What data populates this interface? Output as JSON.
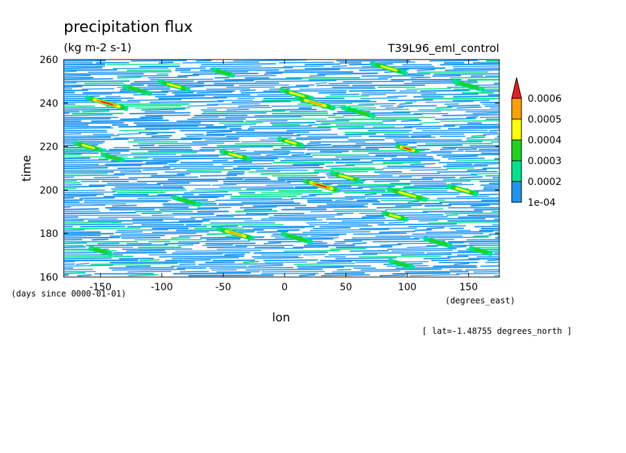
{
  "chart_data": {
    "type": "heatmap",
    "title": "precipitation flux",
    "units": "(kg m-2 s-1)",
    "experiment": "T39L96_eml_control",
    "xlabel": "lon",
    "ylabel": "time",
    "x_units": "(degrees_east)",
    "y_units": "(days since 0000-01-01)",
    "note": "[ lat=-1.48755 degrees_north ]",
    "xlim": [
      -180,
      175
    ],
    "ylim": [
      160,
      260
    ],
    "x_ticks": [
      -150,
      -100,
      -50,
      0,
      50,
      100,
      150
    ],
    "x_tick_labels": [
      "-150",
      "-100",
      "-50",
      "0",
      "50",
      "100",
      "150"
    ],
    "y_ticks": [
      160,
      180,
      200,
      220,
      240,
      260
    ],
    "y_tick_labels": [
      "160",
      "180",
      "200",
      "220",
      "240",
      "260"
    ],
    "colorbar": {
      "levels": [
        "1e-04",
        "0.0002",
        "0.0003",
        "0.0004",
        "0.0005",
        "0.0006"
      ],
      "colors": [
        "#1e96f0",
        "#00e28c",
        "#1ed21e",
        "#ffff00",
        "#ffa000",
        "#e61e1e"
      ]
    },
    "features": [
      {
        "lon": -145,
        "t": 240,
        "level": 5,
        "len": 28
      },
      {
        "lon": -120,
        "t": 246,
        "level": 2,
        "len": 18
      },
      {
        "lon": -90,
        "t": 248,
        "level": 3,
        "len": 20
      },
      {
        "lon": -50,
        "t": 254,
        "level": 2,
        "len": 14
      },
      {
        "lon": 10,
        "t": 244,
        "level": 3,
        "len": 22
      },
      {
        "lon": 25,
        "t": 240,
        "level": 4,
        "len": 26
      },
      {
        "lon": 60,
        "t": 236,
        "level": 2,
        "len": 22
      },
      {
        "lon": 85,
        "t": 256,
        "level": 3,
        "len": 24
      },
      {
        "lon": 150,
        "t": 248,
        "level": 2,
        "len": 20
      },
      {
        "lon": -160,
        "t": 220,
        "level": 3,
        "len": 18
      },
      {
        "lon": -140,
        "t": 215,
        "level": 2,
        "len": 14
      },
      {
        "lon": -40,
        "t": 216,
        "level": 3,
        "len": 20
      },
      {
        "lon": 5,
        "t": 222,
        "level": 3,
        "len": 16
      },
      {
        "lon": 100,
        "t": 219,
        "level": 5,
        "len": 14
      },
      {
        "lon": 30,
        "t": 202,
        "level": 5,
        "len": 24
      },
      {
        "lon": 50,
        "t": 206,
        "level": 3,
        "len": 20
      },
      {
        "lon": 100,
        "t": 198,
        "level": 3,
        "len": 26
      },
      {
        "lon": 145,
        "t": 200,
        "level": 3,
        "len": 20
      },
      {
        "lon": -80,
        "t": 195,
        "level": 2,
        "len": 18
      },
      {
        "lon": -40,
        "t": 180,
        "level": 4,
        "len": 24
      },
      {
        "lon": 10,
        "t": 178,
        "level": 2,
        "len": 20
      },
      {
        "lon": 90,
        "t": 188,
        "level": 3,
        "len": 16
      },
      {
        "lon": 125,
        "t": 176,
        "level": 2,
        "len": 18
      },
      {
        "lon": 95,
        "t": 166,
        "level": 2,
        "len": 16
      },
      {
        "lon": -150,
        "t": 172,
        "level": 2,
        "len": 14
      },
      {
        "lon": 160,
        "t": 172,
        "level": 2,
        "len": 14
      }
    ]
  }
}
